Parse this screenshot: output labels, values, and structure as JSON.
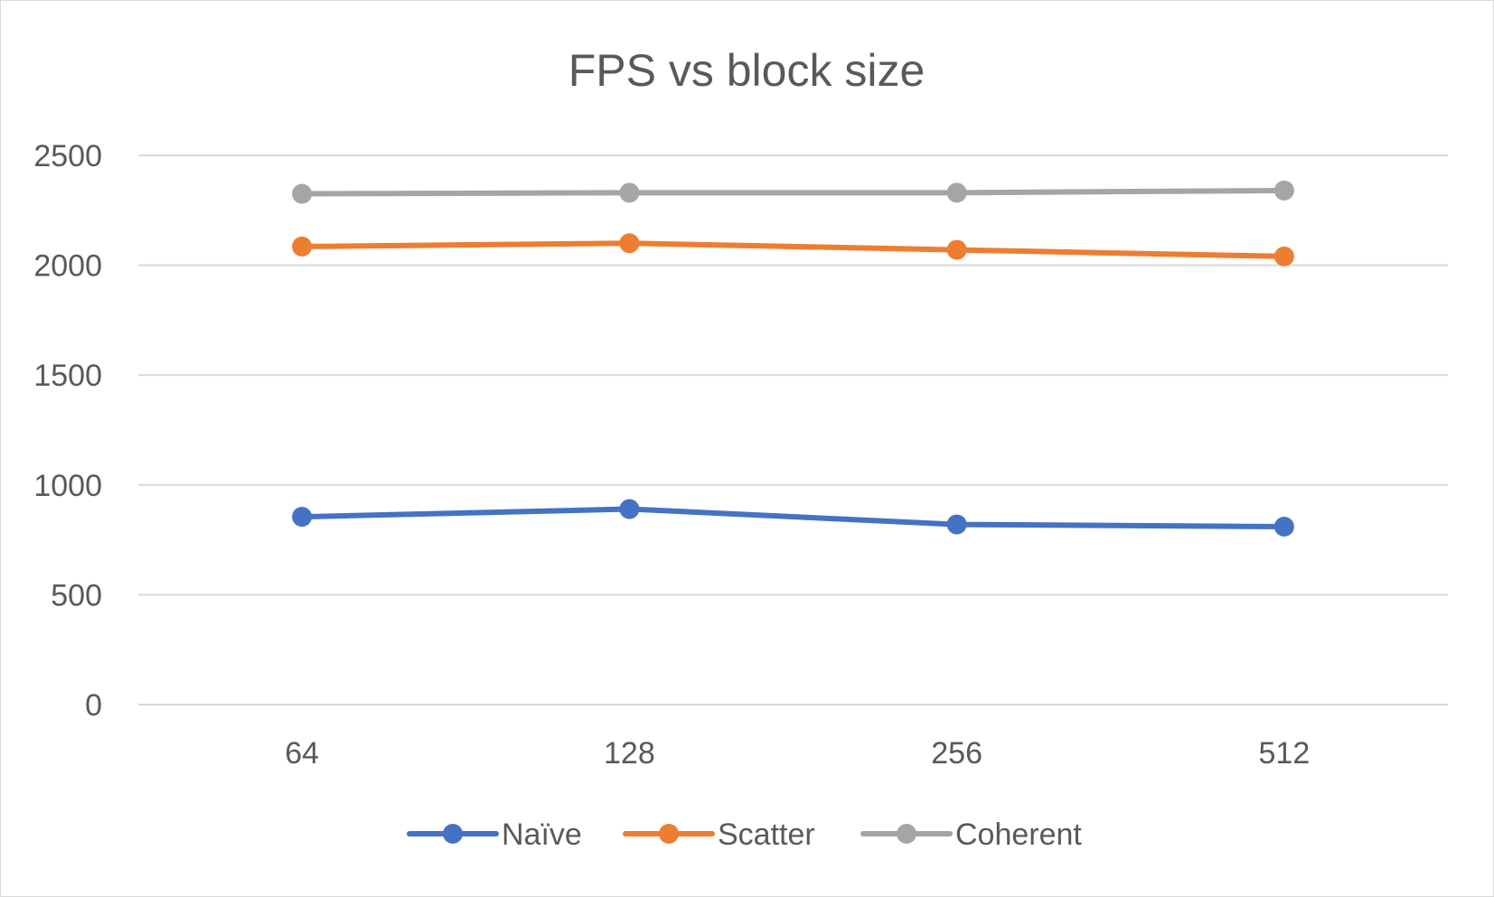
{
  "chart_data": {
    "type": "line",
    "title": "FPS vs block size",
    "xlabel": "",
    "ylabel": "",
    "categories": [
      "64",
      "128",
      "256",
      "512"
    ],
    "yticks": [
      "0",
      "500",
      "1000",
      "1500",
      "2000",
      "2500"
    ],
    "ylim": [
      0,
      2500
    ],
    "grid": true,
    "legend_position": "bottom",
    "series": [
      {
        "name": "Naïve",
        "color": "#4472C4",
        "values": [
          855,
          890,
          820,
          810
        ]
      },
      {
        "name": "Scatter",
        "color": "#ED7D31",
        "values": [
          2085,
          2100,
          2070,
          2040
        ]
      },
      {
        "name": "Coherent",
        "color": "#A5A5A5",
        "values": [
          2325,
          2330,
          2330,
          2340
        ]
      }
    ]
  }
}
